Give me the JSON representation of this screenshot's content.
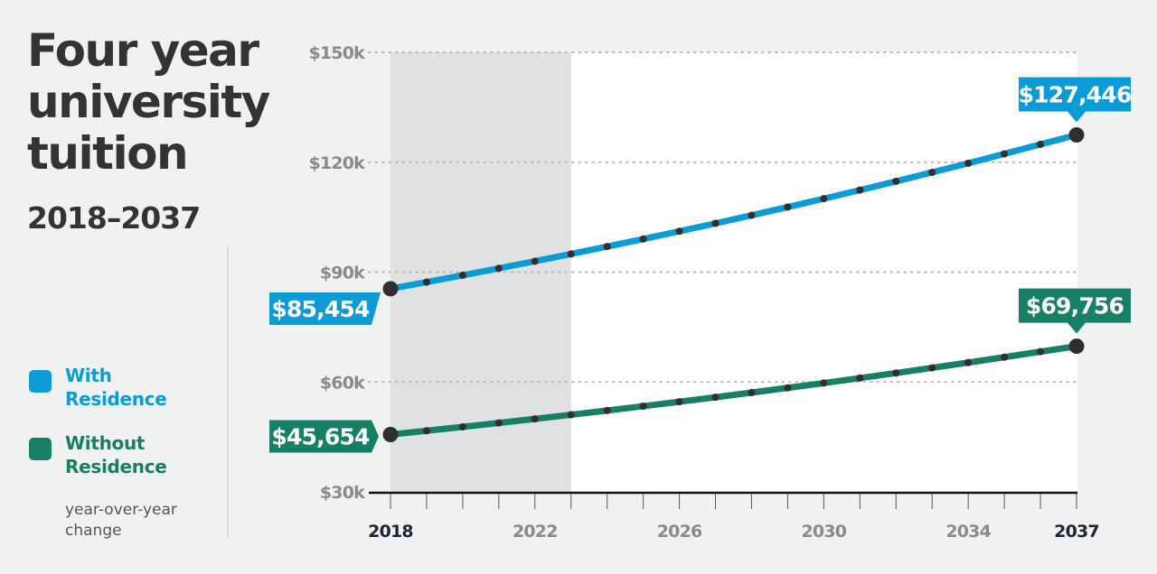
{
  "title": "Four year university tuition",
  "subtitle": "2018–2037",
  "colors": {
    "with_residence": "#0b9bd7",
    "without_residence": "#167f66",
    "marker": "#2f2f2f",
    "shaded_region": "#e0e1e3",
    "plot_background": "#ffffff",
    "page_background": "#f0f2f1"
  },
  "legend": {
    "items": [
      {
        "label": "With Residence",
        "color": "#0b9bd7"
      },
      {
        "label": "Without Residence",
        "color": "#167f66"
      }
    ],
    "note": "year-over-year change"
  },
  "chart_data": {
    "type": "line",
    "title": "Four year university tuition",
    "subtitle": "2018–2037",
    "xlabel": "",
    "ylabel": "",
    "x": [
      2018,
      2019,
      2020,
      2021,
      2022,
      2023,
      2024,
      2025,
      2026,
      2027,
      2028,
      2029,
      2030,
      2031,
      2032,
      2033,
      2034,
      2035,
      2036,
      2037
    ],
    "xlim": [
      2018,
      2037
    ],
    "ylim": [
      30000,
      150000
    ],
    "x_tick_labels": [
      "2018",
      "2022",
      "2026",
      "2030",
      "2034",
      "2037"
    ],
    "x_tick_values": [
      2018,
      2022,
      2026,
      2030,
      2034,
      2037
    ],
    "y_tick_labels": [
      "$30k",
      "$60k",
      "$90k",
      "$120k",
      "$150k"
    ],
    "y_tick_values": [
      30000,
      60000,
      90000,
      120000,
      150000
    ],
    "grid": "horizontal dotted",
    "shaded_range": [
      2018,
      2023
    ],
    "legend_position": "left",
    "series": [
      {
        "name": "With Residence",
        "color": "#0b9bd7",
        "values": [
          85454,
          87274,
          89133,
          91032,
          92971,
          94951,
          96974,
          99039,
          101149,
          103303,
          105504,
          107751,
          110046,
          112390,
          114784,
          117229,
          119726,
          122276,
          124881,
          127446
        ],
        "start_label": "$85,454",
        "end_label": "$127,446"
      },
      {
        "name": "Without Residence",
        "color": "#167f66",
        "values": [
          45654,
          46687,
          47743,
          48823,
          49928,
          51057,
          52212,
          53393,
          54601,
          55836,
          57099,
          58391,
          59712,
          61063,
          62444,
          63857,
          65301,
          66778,
          68289,
          69756
        ],
        "start_label": "$45,654",
        "end_label": "$69,756"
      }
    ]
  }
}
